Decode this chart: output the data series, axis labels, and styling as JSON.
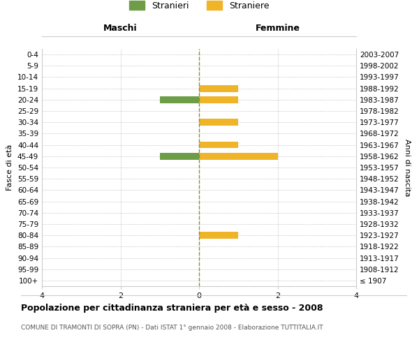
{
  "age_groups": [
    "100+",
    "95-99",
    "90-94",
    "85-89",
    "80-84",
    "75-79",
    "70-74",
    "65-69",
    "60-64",
    "55-59",
    "50-54",
    "45-49",
    "40-44",
    "35-39",
    "30-34",
    "25-29",
    "20-24",
    "15-19",
    "10-14",
    "5-9",
    "0-4"
  ],
  "birth_years": [
    "≤ 1907",
    "1908-1912",
    "1913-1917",
    "1918-1922",
    "1923-1927",
    "1928-1932",
    "1933-1937",
    "1938-1942",
    "1943-1947",
    "1948-1952",
    "1953-1957",
    "1958-1962",
    "1963-1967",
    "1968-1972",
    "1973-1977",
    "1978-1982",
    "1983-1987",
    "1988-1992",
    "1993-1997",
    "1998-2002",
    "2003-2007"
  ],
  "maschi": [
    0,
    0,
    0,
    0,
    0,
    0,
    0,
    0,
    0,
    0,
    0,
    1,
    0,
    0,
    0,
    0,
    1,
    0,
    0,
    0,
    0
  ],
  "femmine": [
    0,
    0,
    0,
    0,
    1,
    0,
    0,
    0,
    0,
    0,
    0,
    2,
    1,
    0,
    1,
    0,
    1,
    1,
    0,
    0,
    0
  ],
  "color_maschi": "#6d9e47",
  "color_femmine": "#f0b429",
  "background_color": "#ffffff",
  "grid_color": "#cccccc",
  "centerline_color": "#8b8b3a",
  "title": "Popolazione per cittadinanza straniera per età e sesso - 2008",
  "subtitle": "COMUNE DI TRAMONTI DI SOPRA (PN) - Dati ISTAT 1° gennaio 2008 - Elaborazione TUTTITALIA.IT",
  "ylabel_left": "Fasce di età",
  "ylabel_right": "Anni di nascita",
  "xlabel_left": "Maschi",
  "xlabel_right": "Femmine",
  "legend_maschi": "Stranieri",
  "legend_femmine": "Straniere",
  "xlim": 4,
  "xticks": [
    -4,
    -2,
    0,
    2,
    4
  ],
  "xticklabels": [
    "4",
    "2",
    "0",
    "2",
    "4"
  ]
}
